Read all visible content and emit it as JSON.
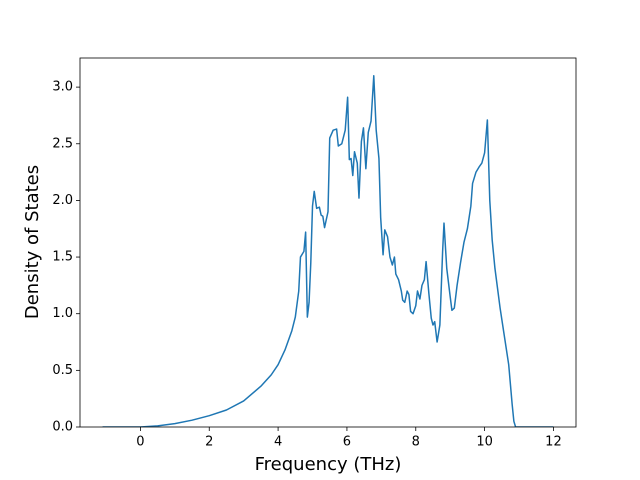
{
  "chart_data": {
    "type": "line",
    "xlabel": "Frequency (THz)",
    "ylabel": "Density of States",
    "color": "#1f77b4",
    "x": [
      -1.1,
      -0.5,
      0,
      0.5,
      1,
      1.5,
      2,
      2.5,
      3,
      3.5,
      3.8,
      4,
      4.2,
      4.4,
      4.5,
      4.6,
      4.65,
      4.75,
      4.8,
      4.85,
      4.9,
      4.95,
      5.0,
      5.05,
      5.12,
      5.2,
      5.25,
      5.3,
      5.35,
      5.45,
      5.5,
      5.6,
      5.7,
      5.75,
      5.85,
      5.95,
      6.02,
      6.07,
      6.12,
      6.17,
      6.22,
      6.3,
      6.35,
      6.42,
      6.48,
      6.55,
      6.62,
      6.7,
      6.78,
      6.85,
      6.93,
      6.98,
      7.05,
      7.1,
      7.18,
      7.25,
      7.32,
      7.38,
      7.42,
      7.5,
      7.58,
      7.62,
      7.68,
      7.75,
      7.8,
      7.85,
      7.92,
      8.0,
      8.05,
      8.12,
      8.18,
      8.25,
      8.3,
      8.38,
      8.45,
      8.5,
      8.55,
      8.62,
      8.7,
      8.78,
      8.82,
      8.9,
      9.0,
      9.05,
      9.12,
      9.2,
      9.3,
      9.4,
      9.5,
      9.6,
      9.65,
      9.75,
      9.85,
      9.92,
      10.0,
      10.08,
      10.15,
      10.22,
      10.3,
      10.45,
      10.55,
      10.7,
      10.8,
      10.85,
      10.9,
      11.5,
      12
    ],
    "values": [
      0,
      0,
      0,
      0.01,
      0.03,
      0.06,
      0.1,
      0.15,
      0.23,
      0.36,
      0.46,
      0.55,
      0.68,
      0.85,
      0.97,
      1.2,
      1.5,
      1.55,
      1.72,
      0.97,
      1.1,
      1.45,
      1.95,
      2.08,
      1.93,
      1.94,
      1.87,
      1.86,
      1.76,
      1.9,
      2.55,
      2.62,
      2.63,
      2.48,
      2.5,
      2.62,
      2.91,
      2.36,
      2.37,
      2.22,
      2.43,
      2.33,
      2.02,
      2.52,
      2.64,
      2.28,
      2.6,
      2.7,
      3.1,
      2.62,
      2.37,
      1.85,
      1.52,
      1.74,
      1.68,
      1.5,
      1.43,
      1.5,
      1.35,
      1.3,
      1.2,
      1.12,
      1.1,
      1.2,
      1.17,
      1.02,
      1.0,
      1.07,
      1.2,
      1.13,
      1.25,
      1.3,
      1.46,
      1.18,
      0.96,
      0.9,
      0.93,
      0.75,
      0.9,
      1.55,
      1.8,
      1.4,
      1.15,
      1.03,
      1.05,
      1.25,
      1.45,
      1.63,
      1.75,
      1.95,
      2.15,
      2.25,
      2.3,
      2.33,
      2.42,
      2.71,
      2.0,
      1.65,
      1.4,
      1.05,
      0.85,
      0.55,
      0.2,
      0.05,
      0,
      0,
      0
    ],
    "xlim": [
      -1.755,
      12.655
    ],
    "ylim": [
      0,
      3.257
    ],
    "xticks": [
      0,
      2,
      4,
      6,
      8,
      10,
      12
    ],
    "yticks": [
      {
        "value": 0,
        "label": "0.0"
      },
      {
        "value": 0.5,
        "label": "0.5"
      },
      {
        "value": 1,
        "label": "1.0"
      },
      {
        "value": 1.5,
        "label": "1.5"
      },
      {
        "value": 2,
        "label": "2.0"
      },
      {
        "value": 2.5,
        "label": "2.5"
      },
      {
        "value": 3,
        "label": "3.0"
      }
    ]
  }
}
